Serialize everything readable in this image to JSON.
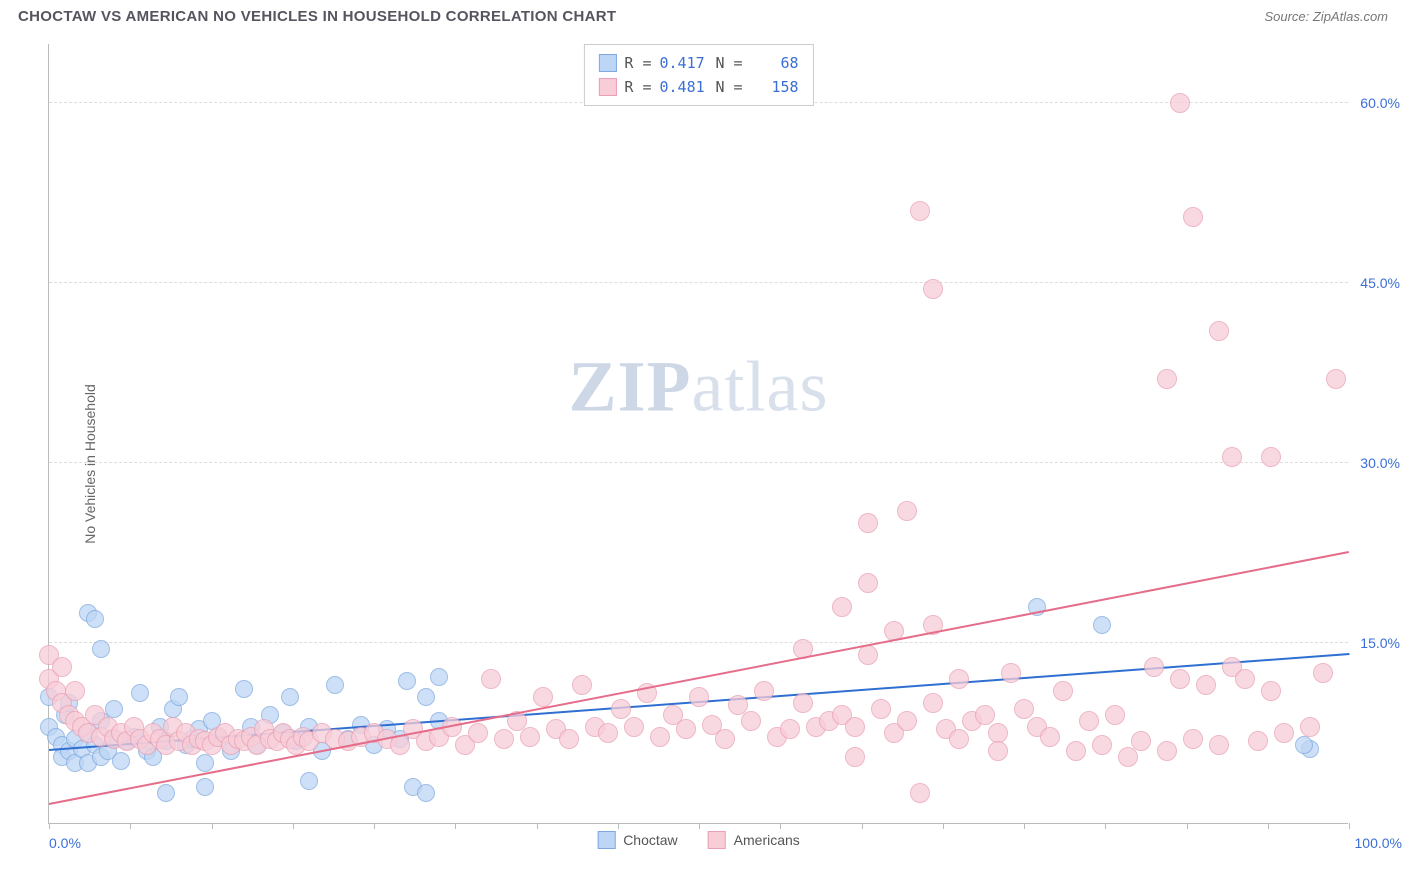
{
  "title": "CHOCTAW VS AMERICAN NO VEHICLES IN HOUSEHOLD CORRELATION CHART",
  "source": "Source: ZipAtlas.com",
  "ylabel": "No Vehicles in Household",
  "watermark_a": "ZIP",
  "watermark_b": "atlas",
  "chart": {
    "type": "scatter",
    "xlim": [
      0,
      100
    ],
    "ylim": [
      0,
      65
    ],
    "xtick_positions": [
      0,
      6.25,
      12.5,
      18.75,
      25,
      31.25,
      37.5,
      43.75,
      50,
      56.25,
      62.5,
      68.75,
      75,
      81.25,
      87.5,
      93.75,
      100
    ],
    "x_min_label": "0.0%",
    "x_max_label": "100.0%",
    "yticks": [
      {
        "v": 15,
        "label": "15.0%"
      },
      {
        "v": 30,
        "label": "30.0%"
      },
      {
        "v": 45,
        "label": "45.0%"
      },
      {
        "v": 60,
        "label": "60.0%"
      }
    ],
    "grid_color": "#dddddd",
    "axis_color": "#bbbbbb",
    "background": "#ffffff",
    "series": [
      {
        "name": "Choctaw",
        "fill": "#bdd6f5",
        "stroke": "#7fa9de",
        "r_value": "0.417",
        "n_value": "68",
        "trend": {
          "x1": 0,
          "y1": 6.0,
          "x2": 100,
          "y2": 14.0,
          "color": "#2f6fd1",
          "width": 2
        },
        "marker_r": 9,
        "points": [
          [
            0,
            10.5
          ],
          [
            0,
            8
          ],
          [
            0.5,
            7.2
          ],
          [
            1,
            6.5
          ],
          [
            1,
            5.5
          ],
          [
            1.2,
            9
          ],
          [
            1.5,
            6
          ],
          [
            1.5,
            10
          ],
          [
            2,
            7
          ],
          [
            2,
            5
          ],
          [
            2.5,
            6.2
          ],
          [
            3,
            7.5
          ],
          [
            3,
            5
          ],
          [
            3.5,
            6.5
          ],
          [
            4,
            8.5
          ],
          [
            4,
            5.5
          ],
          [
            4.5,
            6
          ],
          [
            5,
            7
          ],
          [
            5,
            9.5
          ],
          [
            5.5,
            5.2
          ],
          [
            6,
            6.8
          ],
          [
            6.5,
            7.2
          ],
          [
            7,
            10.8
          ],
          [
            7.5,
            6
          ],
          [
            8,
            5.5
          ],
          [
            8.5,
            8
          ],
          [
            9,
            6.8
          ],
          [
            9.5,
            9.5
          ],
          [
            10,
            10.5
          ],
          [
            10.5,
            6.5
          ],
          [
            11,
            7
          ],
          [
            11.5,
            7.8
          ],
          [
            12,
            5
          ],
          [
            12.5,
            8.5
          ],
          [
            13,
            7.2
          ],
          [
            14,
            6
          ],
          [
            15,
            11.2
          ],
          [
            15.5,
            8
          ],
          [
            16,
            6.5
          ],
          [
            17,
            9
          ],
          [
            18,
            7.5
          ],
          [
            18.5,
            10.5
          ],
          [
            19,
            6.8
          ],
          [
            20,
            8
          ],
          [
            21,
            6
          ],
          [
            22,
            11.5
          ],
          [
            23,
            7
          ],
          [
            24,
            8.2
          ],
          [
            25,
            6.5
          ],
          [
            26,
            7.8
          ],
          [
            27,
            7
          ],
          [
            27.5,
            11.8
          ],
          [
            28,
            3
          ],
          [
            29,
            10.5
          ],
          [
            29,
            2.5
          ],
          [
            30,
            12.2
          ],
          [
            30,
            8.5
          ],
          [
            12,
            3
          ],
          [
            9,
            2.5
          ],
          [
            20,
            3.5
          ],
          [
            3,
            17.5
          ],
          [
            3.5,
            17
          ],
          [
            4,
            14.5
          ],
          [
            76,
            18
          ],
          [
            81,
            16.5
          ],
          [
            97,
            6.2
          ],
          [
            96.5,
            6.5
          ]
        ]
      },
      {
        "name": "Americans",
        "fill": "#f8cdd8",
        "stroke": "#e9a0b4",
        "r_value": "0.481",
        "n_value": "158",
        "trend": {
          "x1": 0,
          "y1": 1.5,
          "x2": 100,
          "y2": 22.5,
          "color": "#e56d8a",
          "width": 2
        },
        "marker_r": 10,
        "points": [
          [
            0,
            14
          ],
          [
            0,
            12
          ],
          [
            0.5,
            11
          ],
          [
            1,
            10
          ],
          [
            1,
            13
          ],
          [
            1.5,
            9
          ],
          [
            2,
            8.5
          ],
          [
            2,
            11
          ],
          [
            2.5,
            8
          ],
          [
            3,
            7.5
          ],
          [
            3.5,
            9
          ],
          [
            4,
            7.2
          ],
          [
            4.5,
            8
          ],
          [
            5,
            7
          ],
          [
            5.5,
            7.5
          ],
          [
            6,
            6.8
          ],
          [
            6.5,
            8
          ],
          [
            7,
            7
          ],
          [
            7.5,
            6.5
          ],
          [
            8,
            7.5
          ],
          [
            8.5,
            7
          ],
          [
            9,
            6.5
          ],
          [
            9.5,
            8
          ],
          [
            10,
            6.8
          ],
          [
            10.5,
            7.5
          ],
          [
            11,
            6.5
          ],
          [
            11.5,
            7
          ],
          [
            12,
            6.8
          ],
          [
            12.5,
            6.5
          ],
          [
            13,
            7.2
          ],
          [
            13.5,
            7.5
          ],
          [
            14,
            6.5
          ],
          [
            14.5,
            7
          ],
          [
            15,
            6.8
          ],
          [
            15.5,
            7.2
          ],
          [
            16,
            6.5
          ],
          [
            16.5,
            7.8
          ],
          [
            17,
            7
          ],
          [
            17.5,
            6.8
          ],
          [
            18,
            7.5
          ],
          [
            18.5,
            7
          ],
          [
            19,
            6.5
          ],
          [
            19.5,
            7.2
          ],
          [
            20,
            6.8
          ],
          [
            21,
            7.5
          ],
          [
            22,
            7
          ],
          [
            23,
            6.8
          ],
          [
            24,
            7.2
          ],
          [
            25,
            7.5
          ],
          [
            26,
            7
          ],
          [
            27,
            6.5
          ],
          [
            28,
            7.8
          ],
          [
            29,
            6.8
          ],
          [
            30,
            7.2
          ],
          [
            31,
            8
          ],
          [
            32,
            6.5
          ],
          [
            33,
            7.5
          ],
          [
            34,
            12
          ],
          [
            35,
            7
          ],
          [
            36,
            8.5
          ],
          [
            37,
            7.2
          ],
          [
            38,
            10.5
          ],
          [
            39,
            7.8
          ],
          [
            40,
            7
          ],
          [
            41,
            11.5
          ],
          [
            42,
            8
          ],
          [
            43,
            7.5
          ],
          [
            44,
            9.5
          ],
          [
            45,
            8
          ],
          [
            46,
            10.8
          ],
          [
            47,
            7.2
          ],
          [
            48,
            9
          ],
          [
            49,
            7.8
          ],
          [
            50,
            10.5
          ],
          [
            51,
            8.2
          ],
          [
            52,
            7
          ],
          [
            53,
            9.8
          ],
          [
            54,
            8.5
          ],
          [
            55,
            11
          ],
          [
            56,
            7.2
          ],
          [
            57,
            7.8
          ],
          [
            58,
            14.5
          ],
          [
            58,
            10
          ],
          [
            59,
            8
          ],
          [
            60,
            8.5
          ],
          [
            61,
            18
          ],
          [
            61,
            9
          ],
          [
            62,
            8
          ],
          [
            62,
            5.5
          ],
          [
            63,
            14
          ],
          [
            63,
            20
          ],
          [
            64,
            9.5
          ],
          [
            65,
            7.5
          ],
          [
            65,
            16
          ],
          [
            66,
            8.5
          ],
          [
            67,
            2.5
          ],
          [
            68,
            10
          ],
          [
            68,
            16.5
          ],
          [
            69,
            7.8
          ],
          [
            70,
            12
          ],
          [
            70,
            7
          ],
          [
            71,
            8.5
          ],
          [
            72,
            9
          ],
          [
            73,
            7.5
          ],
          [
            73,
            6
          ],
          [
            74,
            12.5
          ],
          [
            75,
            9.5
          ],
          [
            76,
            8
          ],
          [
            77,
            7.2
          ],
          [
            78,
            11
          ],
          [
            79,
            6
          ],
          [
            80,
            8.5
          ],
          [
            81,
            6.5
          ],
          [
            82,
            9
          ],
          [
            83,
            5.5
          ],
          [
            84,
            6.8
          ],
          [
            85,
            13
          ],
          [
            86,
            6
          ],
          [
            87,
            12
          ],
          [
            88,
            7
          ],
          [
            89,
            11.5
          ],
          [
            90,
            6.5
          ],
          [
            91,
            13
          ],
          [
            92,
            12
          ],
          [
            93,
            6.8
          ],
          [
            94,
            11
          ],
          [
            95,
            7.5
          ],
          [
            97,
            8
          ],
          [
            98,
            12.5
          ],
          [
            67,
            51
          ],
          [
            68,
            44.5
          ],
          [
            90,
            41
          ],
          [
            91,
            30.5
          ],
          [
            94,
            30.5
          ],
          [
            86,
            37
          ],
          [
            87,
            60
          ],
          [
            88,
            50.5
          ],
          [
            99,
            37
          ],
          [
            66,
            26
          ],
          [
            63,
            25
          ]
        ]
      }
    ],
    "bottom_legend": [
      {
        "label": "Choctaw",
        "fill": "#bdd6f5",
        "stroke": "#7fa9de"
      },
      {
        "label": "Americans",
        "fill": "#f8cdd8",
        "stroke": "#e9a0b4"
      }
    ]
  }
}
